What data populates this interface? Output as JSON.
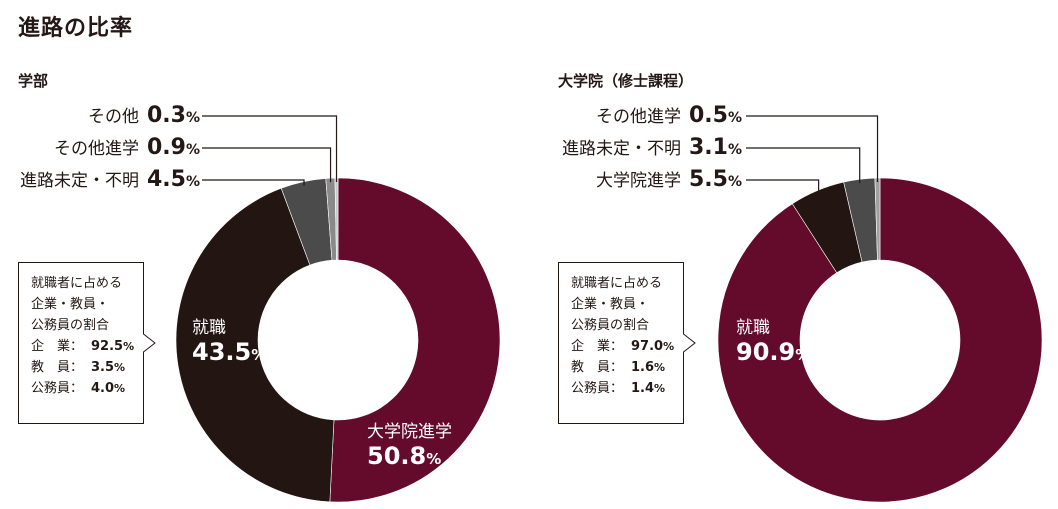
{
  "title": "進路の比率",
  "colors": {
    "grad": "#640a2a",
    "job": "#231512",
    "undec": "#4b4b4b",
    "other": "#a0a0a0",
    "line": "#231815"
  },
  "chart_data": [
    {
      "type": "pie",
      "title": "学部",
      "series": [
        {
          "name": "大学院進学",
          "value": 50.8,
          "color": "#640a2a"
        },
        {
          "name": "就職",
          "value": 43.5,
          "color": "#231512"
        },
        {
          "name": "進路未定・不明",
          "value": 4.5,
          "color": "#4b4b4b"
        },
        {
          "name": "その他進学",
          "value": 0.9,
          "color": "#8a8a8a"
        },
        {
          "name": "その他",
          "value": 0.3,
          "color": "#c8c8c8"
        }
      ],
      "inside_labels": [
        {
          "name": "就職",
          "value": "43.5",
          "unit": "%"
        },
        {
          "name": "大学院進学",
          "value": "50.8",
          "unit": "%"
        }
      ],
      "callouts": [
        {
          "label": "その他",
          "value": "0.3",
          "unit": "%"
        },
        {
          "label": "その他進学",
          "value": "0.9",
          "unit": "%"
        },
        {
          "label": "進路未定・不明",
          "value": "4.5",
          "unit": "%"
        }
      ],
      "employment_box": {
        "heading": [
          "就職者に占める",
          "企業・教員・",
          "公務員の割合"
        ],
        "rows": [
          {
            "label": "企　業：",
            "value": "92.5",
            "unit": "%"
          },
          {
            "label": "教　員：",
            "value": "3.5",
            "unit": "%"
          },
          {
            "label": "公務員：",
            "value": "4.0",
            "unit": "%"
          }
        ]
      }
    },
    {
      "type": "pie",
      "title": "大学院（修士課程）",
      "series": [
        {
          "name": "就職",
          "value": 90.9,
          "color": "#640a2a"
        },
        {
          "name": "大学院進学",
          "value": 5.5,
          "color": "#231512"
        },
        {
          "name": "進路未定・不明",
          "value": 3.1,
          "color": "#4b4b4b"
        },
        {
          "name": "その他進学",
          "value": 0.5,
          "color": "#a0a0a0"
        }
      ],
      "inside_labels": [
        {
          "name": "就職",
          "value": "90.9",
          "unit": "%"
        }
      ],
      "callouts": [
        {
          "label": "その他進学",
          "value": "0.5",
          "unit": "%"
        },
        {
          "label": "進路未定・不明",
          "value": "3.1",
          "unit": "%"
        },
        {
          "label": "大学院進学",
          "value": "5.5",
          "unit": "%"
        }
      ],
      "employment_box": {
        "heading": [
          "就職者に占める",
          "企業・教員・",
          "公務員の割合"
        ],
        "rows": [
          {
            "label": "企　業：",
            "value": "97.0",
            "unit": "%"
          },
          {
            "label": "教　員：",
            "value": "1.6",
            "unit": "%"
          },
          {
            "label": "公務員：",
            "value": "1.4",
            "unit": "%"
          }
        ]
      }
    }
  ]
}
